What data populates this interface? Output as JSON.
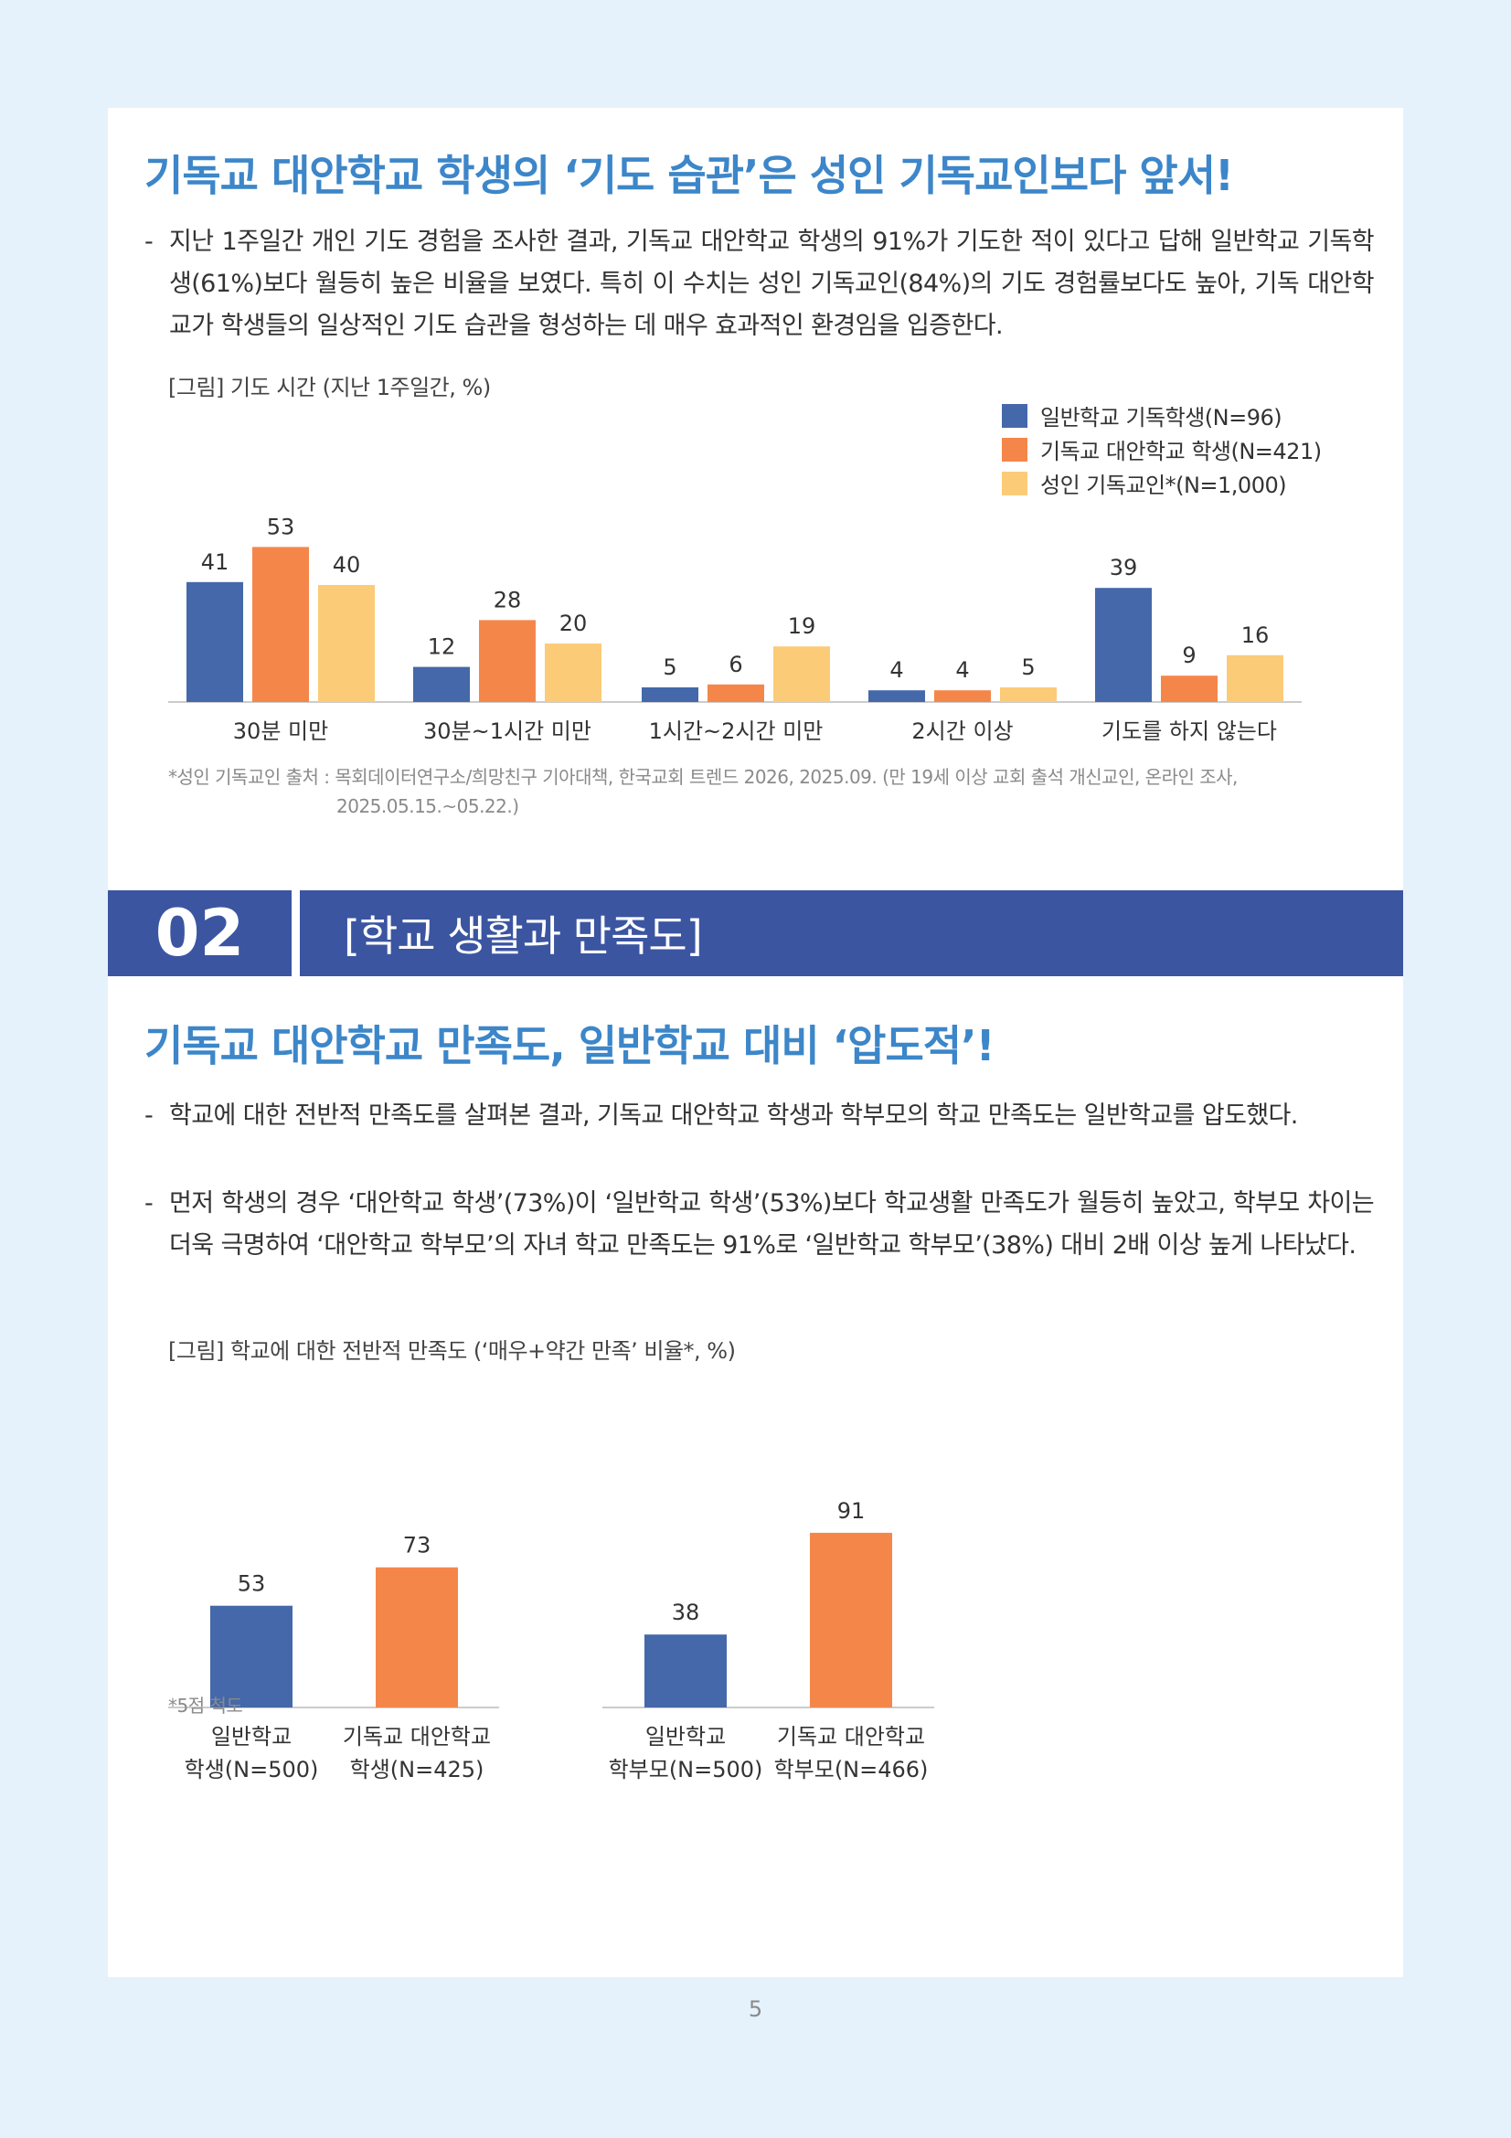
{
  "section1": {
    "heading": "기독교 대안학교 학생의 ‘기도 습관’은 성인 기독교인보다 앞서!",
    "bullets": [
      "지난 1주일간 개인 기도 경험을 조사한 결과, 기독교 대안학교 학생의 91%가 기도한 적이 있다고 답해 일반학교 기독학생(61%)보다 월등히 높은 비율을 보였다. 특히 이 수치는 성인 기독교인(84%)의 기도 경험률보다도 높아, 기독 대안학교가 학생들의 일상적인 기도 습관을 형성하는 데 매우 효과적인 환경임을 입증한다."
    ],
    "figure_caption": "[그림] 기도 시간 (지난 1주일간, %)",
    "note_line1": "*성인 기독교인 출처 : 목회데이터연구소/희망친구 기아대책, 한국교회 트렌드 2026, 2025.09. (만 19세 이상 교회 출석 개신교인, 온라인 조사,",
    "note_line2": "2025.05.15.~05.22.)"
  },
  "section_bar": {
    "number": "02",
    "title": "[학교 생활과 만족도]"
  },
  "section2": {
    "heading": "기독교 대안학교 만족도, 일반학교 대비 ‘압도적’!",
    "bullets": [
      "학교에 대한 전반적 만족도를 살펴본 결과, 기독교 대안학교 학생과 학부모의 학교 만족도는 일반학교를 압도했다.",
      "먼저 학생의 경우 ‘대안학교 학생’(73%)이 ‘일반학교 학생’(53%)보다 학교생활 만족도가 월등히 높았고, 학부모 차이는 더욱 극명하여 ‘대안학교 학부모’의 자녀 학교 만족도는 91%로 ‘일반학교 학부모’(38%) 대비 2배 이상 높게 나타났다."
    ],
    "figure_caption": "[그림] 학교에 대한 전반적 만족도 (‘매우+약간 만족’ 비율*, %)",
    "note": "*5점 척도"
  },
  "page_number": "5",
  "colors": {
    "blue": "#4468a9",
    "orange": "#f5864a",
    "yellow": "#fccb78",
    "heading": "#3c86c9",
    "bar": "#3b55a1"
  },
  "chart_data": [
    {
      "type": "bar",
      "title": "[그림] 기도 시간 (지난 1주일간, %)",
      "categories": [
        "30분 미만",
        "30분~1시간 미만",
        "1시간~2시간 미만",
        "2시간 이상",
        "기도를 하지 않는다"
      ],
      "series": [
        {
          "name": "일반학교 기독학생(N=96)",
          "values": [
            41,
            12,
            5,
            4,
            39
          ],
          "color": "#4468a9"
        },
        {
          "name": "기독교 대안학교 학생(N=421)",
          "values": [
            53,
            28,
            6,
            4,
            9
          ],
          "color": "#f5864a"
        },
        {
          "name": "성인 기독교인*(N=1,000)",
          "values": [
            40,
            20,
            19,
            5,
            16
          ],
          "color": "#fccb78"
        }
      ],
      "legend": "top-right",
      "grid": false
    },
    {
      "type": "bar",
      "title": "[그림] 학교에 대한 전반적 만족도 (‘매우+약간 만족’ 비율*, %)",
      "groups": [
        {
          "bars": [
            {
              "label_line1": "일반학교",
              "label_line2": "학생(N=500)",
              "value": 53,
              "color": "#4468a9"
            },
            {
              "label_line1": "기독교 대안학교",
              "label_line2": "학생(N=425)",
              "value": 73,
              "color": "#f5864a"
            }
          ]
        },
        {
          "bars": [
            {
              "label_line1": "일반학교",
              "label_line2": "학부모(N=500)",
              "value": 38,
              "color": "#4468a9"
            },
            {
              "label_line1": "기독교 대안학교",
              "label_line2": "학부모(N=466)",
              "value": 91,
              "color": "#f5864a"
            }
          ]
        }
      ],
      "grid": false
    }
  ]
}
